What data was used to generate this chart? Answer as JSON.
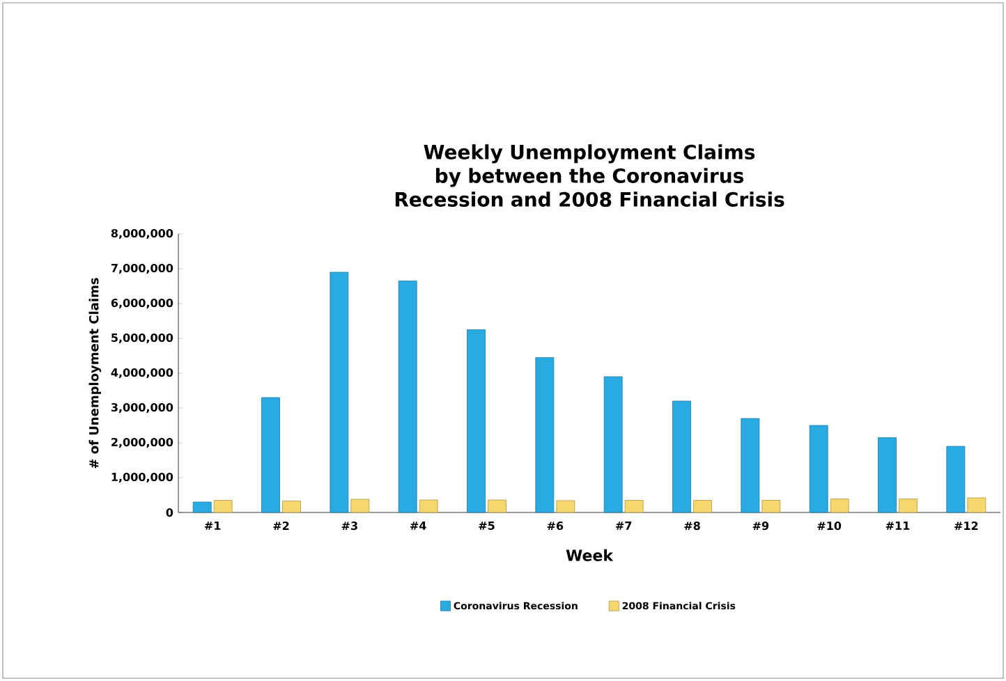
{
  "chart_data": {
    "type": "bar",
    "title": "Weekly Unemployment Claims by between the Coronavirus Recession and 2008 Financial Crisis",
    "xlabel": "Week",
    "ylabel": "# of Unemployment Claims",
    "categories": [
      "#1",
      "#2",
      "#3",
      "#4",
      "#5",
      "#6",
      "#7",
      "#8",
      "#9",
      "#10",
      "#11",
      "#12"
    ],
    "series": [
      {
        "name": "Coronavirus Recession",
        "color": "#29abe2",
        "values": [
          300000,
          3300000,
          6900000,
          6650000,
          5250000,
          4450000,
          3900000,
          3200000,
          2700000,
          2500000,
          2150000,
          1900000
        ]
      },
      {
        "name": "2008 Financial Crisis",
        "color": "#f5d76e",
        "values": [
          350000,
          330000,
          380000,
          360000,
          360000,
          340000,
          350000,
          350000,
          350000,
          390000,
          390000,
          420000
        ]
      }
    ],
    "ylim": [
      0,
      8000000
    ],
    "yticks": [
      {
        "value": 0,
        "label": "0"
      },
      {
        "value": 1000000,
        "label": "1,000,000"
      },
      {
        "value": 2000000,
        "label": "2,000,000"
      },
      {
        "value": 3000000,
        "label": "3,000,000"
      },
      {
        "value": 4000000,
        "label": "4,000,000"
      },
      {
        "value": 5000000,
        "label": "5,000,000"
      },
      {
        "value": 6000000,
        "label": "6,000,000"
      },
      {
        "value": 7000000,
        "label": "7,000,000"
      },
      {
        "value": 8000000,
        "label": "8,000,000"
      }
    ],
    "legend": "bottom",
    "grid": false
  }
}
